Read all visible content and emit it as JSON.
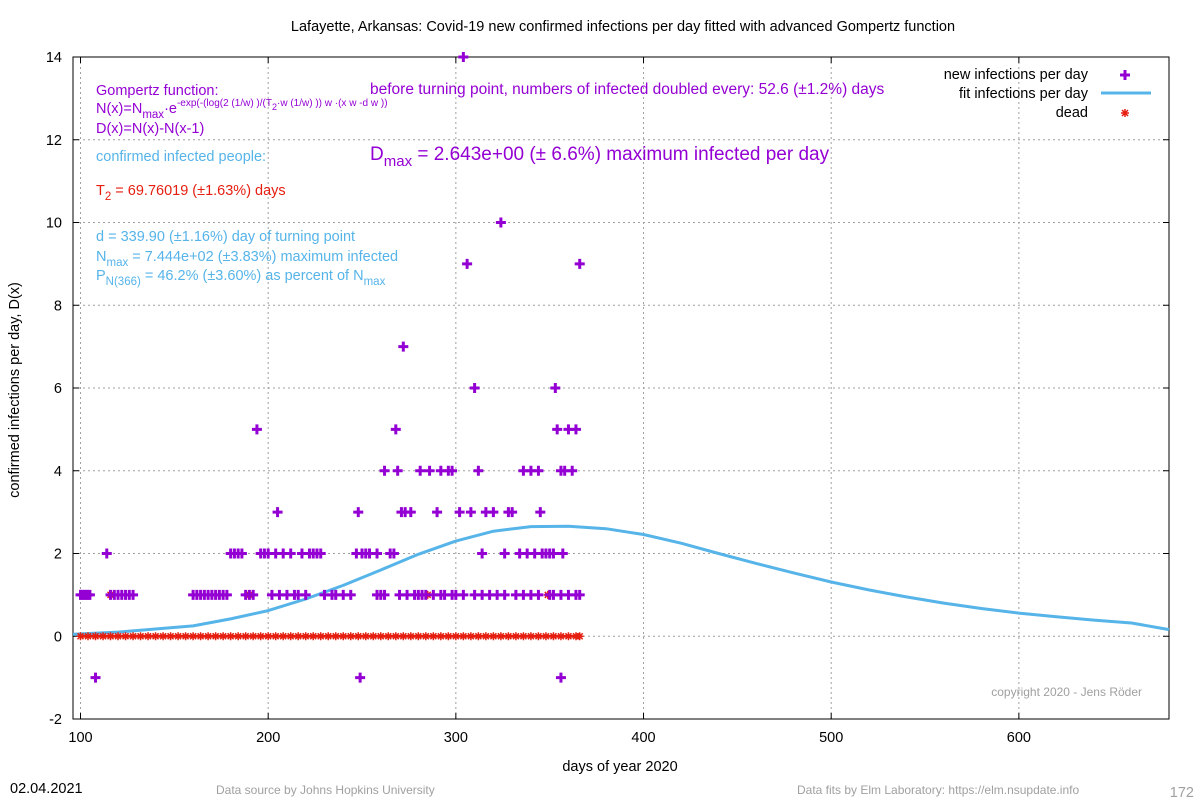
{
  "chart_data": {
    "type": "scatter",
    "title": "Lafayette,  Arkansas: Covid-19 new confirmed infections per day fitted with advanced Gompertz function",
    "xlabel": "days of year 2020",
    "ylabel": "confirmed infections per day, D(x)",
    "xlim": [
      96,
      680
    ],
    "ylim": [
      -2,
      14
    ],
    "x_ticks": [
      100,
      200,
      300,
      400,
      500,
      600
    ],
    "y_ticks": [
      -2,
      0,
      2,
      4,
      6,
      8,
      10,
      12,
      14
    ],
    "grid": true,
    "legend_position": "top-right",
    "legend": [
      "new infections per day",
      "fit infections per day",
      "dead"
    ],
    "colors": {
      "infections": "#9400d3",
      "fit": "#56b4e9",
      "dead": "#e51e10",
      "annotation_red": "#e51e10"
    },
    "series": [
      {
        "name": "new infections per day",
        "style": "plus",
        "values": [
          [
            100,
            1
          ],
          [
            101,
            1
          ],
          [
            102,
            1
          ],
          [
            103,
            1
          ],
          [
            104,
            1
          ],
          [
            105,
            1
          ],
          [
            108,
            -1
          ],
          [
            114,
            2
          ],
          [
            116,
            1
          ],
          [
            118,
            1
          ],
          [
            120,
            1
          ],
          [
            122,
            1
          ],
          [
            124,
            1
          ],
          [
            126,
            1
          ],
          [
            128,
            1
          ],
          [
            180,
            2
          ],
          [
            182,
            2
          ],
          [
            184,
            2
          ],
          [
            186,
            2
          ],
          [
            190,
            1
          ],
          [
            194,
            5
          ],
          [
            196,
            2
          ],
          [
            198,
            2
          ],
          [
            200,
            2
          ],
          [
            204,
            2
          ],
          [
            205,
            3
          ],
          [
            208,
            2
          ],
          [
            212,
            2
          ],
          [
            218,
            2
          ],
          [
            222,
            2
          ],
          [
            224,
            2
          ],
          [
            226,
            2
          ],
          [
            228,
            2
          ],
          [
            247,
            2
          ],
          [
            248,
            3
          ],
          [
            249,
            -1
          ],
          [
            250,
            2
          ],
          [
            252,
            2
          ],
          [
            254,
            2
          ],
          [
            258,
            2
          ],
          [
            262,
            4
          ],
          [
            265,
            2
          ],
          [
            267,
            2
          ],
          [
            268,
            5
          ],
          [
            269,
            4
          ],
          [
            271,
            3
          ],
          [
            272,
            7
          ],
          [
            273,
            3
          ],
          [
            276,
            3
          ],
          [
            281,
            4
          ],
          [
            286,
            4
          ],
          [
            290,
            3
          ],
          [
            292,
            4
          ],
          [
            296,
            4
          ],
          [
            298,
            4
          ],
          [
            302,
            3
          ],
          [
            304,
            14
          ],
          [
            306,
            9
          ],
          [
            308,
            3
          ],
          [
            310,
            6
          ],
          [
            312,
            4
          ],
          [
            314,
            2
          ],
          [
            316,
            3
          ],
          [
            320,
            3
          ],
          [
            324,
            10
          ],
          [
            326,
            2
          ],
          [
            328,
            3
          ],
          [
            330,
            3
          ],
          [
            334,
            2
          ],
          [
            336,
            4
          ],
          [
            338,
            2
          ],
          [
            340,
            4
          ],
          [
            342,
            2
          ],
          [
            344,
            4
          ],
          [
            345,
            3
          ],
          [
            346,
            2
          ],
          [
            348,
            2
          ],
          [
            350,
            2
          ],
          [
            352,
            2
          ],
          [
            353,
            6
          ],
          [
            354,
            5
          ],
          [
            356,
            4
          ],
          [
            356,
            -1
          ],
          [
            357,
            2
          ],
          [
            358,
            4
          ],
          [
            360,
            5
          ],
          [
            362,
            4
          ],
          [
            364,
            5
          ],
          [
            366,
            9
          ],
          [
            160,
            1
          ],
          [
            162,
            1
          ],
          [
            164,
            1
          ],
          [
            166,
            1
          ],
          [
            168,
            1
          ],
          [
            170,
            1
          ],
          [
            172,
            1
          ],
          [
            174,
            1
          ],
          [
            176,
            1
          ],
          [
            178,
            1
          ],
          [
            188,
            1
          ],
          [
            192,
            1
          ],
          [
            202,
            1
          ],
          [
            206,
            1
          ],
          [
            210,
            1
          ],
          [
            214,
            1
          ],
          [
            216,
            1
          ],
          [
            220,
            1
          ],
          [
            230,
            1
          ],
          [
            234,
            1
          ],
          [
            236,
            1
          ],
          [
            240,
            1
          ],
          [
            244,
            1
          ],
          [
            258,
            1
          ],
          [
            260,
            1
          ],
          [
            262,
            1
          ],
          [
            270,
            1
          ],
          [
            274,
            1
          ],
          [
            278,
            1
          ],
          [
            280,
            1
          ],
          [
            282,
            1
          ],
          [
            284,
            1
          ],
          [
            288,
            1
          ],
          [
            292,
            1
          ],
          [
            294,
            1
          ],
          [
            298,
            1
          ],
          [
            300,
            1
          ],
          [
            304,
            1
          ],
          [
            310,
            1
          ],
          [
            314,
            1
          ],
          [
            318,
            1
          ],
          [
            322,
            1
          ],
          [
            326,
            1
          ],
          [
            332,
            1
          ],
          [
            336,
            1
          ],
          [
            340,
            1
          ],
          [
            344,
            1
          ],
          [
            350,
            1
          ],
          [
            352,
            1
          ],
          [
            356,
            1
          ],
          [
            360,
            1
          ],
          [
            364,
            1
          ],
          [
            366,
            1
          ]
        ]
      },
      {
        "name": "fit infections per day",
        "style": "line",
        "values": [
          [
            96,
            0.05
          ],
          [
            120,
            0.1
          ],
          [
            160,
            0.25
          ],
          [
            180,
            0.42
          ],
          [
            200,
            0.62
          ],
          [
            220,
            0.9
          ],
          [
            240,
            1.23
          ],
          [
            260,
            1.6
          ],
          [
            280,
            1.98
          ],
          [
            300,
            2.3
          ],
          [
            320,
            2.54
          ],
          [
            340,
            2.65
          ],
          [
            360,
            2.66
          ],
          [
            380,
            2.6
          ],
          [
            400,
            2.46
          ],
          [
            420,
            2.25
          ],
          [
            440,
            2.0
          ],
          [
            460,
            1.76
          ],
          [
            480,
            1.53
          ],
          [
            500,
            1.31
          ],
          [
            520,
            1.12
          ],
          [
            540,
            0.95
          ],
          [
            560,
            0.8
          ],
          [
            580,
            0.67
          ],
          [
            600,
            0.56
          ],
          [
            620,
            0.47
          ],
          [
            640,
            0.39
          ],
          [
            660,
            0.32
          ],
          [
            680,
            0.16
          ]
        ]
      },
      {
        "name": "dead",
        "style": "star",
        "values": [
          [
            100,
            0
          ],
          [
            104,
            0
          ],
          [
            108,
            0
          ],
          [
            112,
            0
          ],
          [
            116,
            1
          ],
          [
            116,
            0
          ],
          [
            120,
            0
          ],
          [
            124,
            0
          ],
          [
            128,
            0
          ],
          [
            132,
            0
          ],
          [
            136,
            0
          ],
          [
            140,
            0
          ],
          [
            144,
            0
          ],
          [
            148,
            0
          ],
          [
            152,
            0
          ],
          [
            156,
            0
          ],
          [
            160,
            0
          ],
          [
            164,
            0
          ],
          [
            168,
            0
          ],
          [
            172,
            0
          ],
          [
            176,
            0
          ],
          [
            180,
            0
          ],
          [
            184,
            0
          ],
          [
            188,
            0
          ],
          [
            190,
            1
          ],
          [
            192,
            0
          ],
          [
            196,
            0
          ],
          [
            200,
            0
          ],
          [
            204,
            0
          ],
          [
            208,
            0
          ],
          [
            212,
            0
          ],
          [
            216,
            0
          ],
          [
            220,
            0
          ],
          [
            224,
            0
          ],
          [
            228,
            0
          ],
          [
            232,
            0
          ],
          [
            236,
            0
          ],
          [
            240,
            0
          ],
          [
            244,
            0
          ],
          [
            248,
            0
          ],
          [
            252,
            0
          ],
          [
            256,
            0
          ],
          [
            260,
            0
          ],
          [
            264,
            0
          ],
          [
            268,
            0
          ],
          [
            272,
            0
          ],
          [
            276,
            0
          ],
          [
            280,
            0
          ],
          [
            284,
            0
          ],
          [
            285,
            1
          ],
          [
            288,
            0
          ],
          [
            292,
            0
          ],
          [
            296,
            0
          ],
          [
            300,
            0
          ],
          [
            304,
            0
          ],
          [
            308,
            0
          ],
          [
            312,
            0
          ],
          [
            316,
            0
          ],
          [
            320,
            0
          ],
          [
            324,
            0
          ],
          [
            328,
            0
          ],
          [
            332,
            0
          ],
          [
            336,
            0
          ],
          [
            340,
            0
          ],
          [
            344,
            0
          ],
          [
            348,
            0
          ],
          [
            349,
            1
          ],
          [
            352,
            0
          ],
          [
            356,
            0
          ],
          [
            360,
            0
          ],
          [
            364,
            0
          ],
          [
            366,
            0
          ]
        ]
      }
    ]
  },
  "annotations": {
    "gompertz_title": "Gompertz function:",
    "formula_line2_a": "N(x)=N",
    "formula_line2_sub": "max",
    "formula_line2_b": "·e",
    "formula_line2_sup": "-exp(-(log(2 (1/w) )/(T",
    "formula_line2_sup_sub": "2",
    "formula_line2_sup_c": "·w (1/w) )) w ·(x w -d w ))",
    "formula_line3": "D(x)=N(x)-N(x-1)",
    "doubling_text": "before turning point, numbers of infected doubled every: 52.6 (±1.2%) days",
    "confirmed_label": "confirmed infected people:",
    "dmax_main": "D",
    "dmax_sub": "max",
    "dmax_rest": " = 2.643e+00 (± 6.6%) maximum infected per day",
    "t2_main": "T",
    "t2_sub": "2",
    "t2_rest": " = 69.76019 (±1.63%) days",
    "d_line": "d = 339.90 (±1.16%) day of turning point",
    "nmax_main": "N",
    "nmax_sub": "max",
    "nmax_rest": " = 7.444e+02 (±3.83%) maximum infected",
    "p_main": "P",
    "p_sub": "N(366)",
    "p_rest": " = 46.2% (±3.60%) as percent of N",
    "p_sub2": "max",
    "copyright": "copyright 2020 - Jens Röder"
  },
  "footer": {
    "date": "02.04.2021",
    "source_left": "Data source by Johns Hopkins University",
    "source_right": "Data fits by Elm Laboratory: https://elm.nsupdate.info",
    "page_number": "172"
  }
}
